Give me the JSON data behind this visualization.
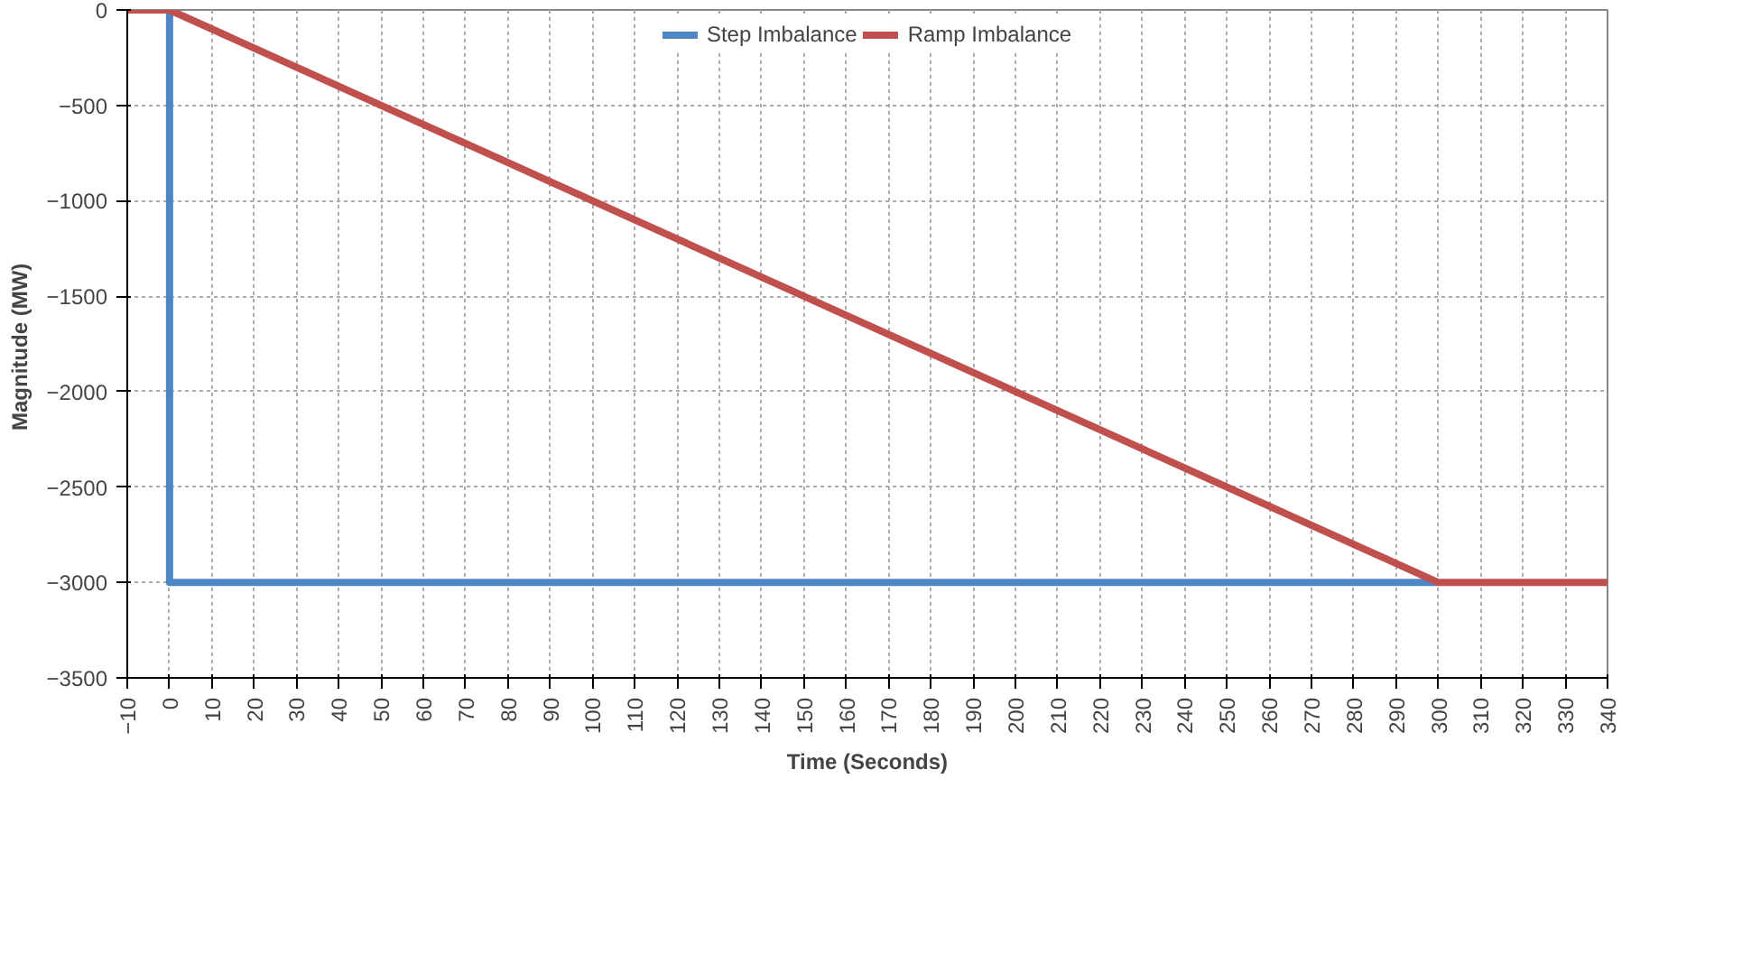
{
  "chart_data": {
    "type": "line",
    "xlabel": "Time (Seconds)",
    "ylabel": "Magnitude  (MW)",
    "xlim": [
      -10,
      340
    ],
    "xticks": [
      -10,
      0,
      10,
      20,
      30,
      40,
      50,
      60,
      70,
      80,
      90,
      100,
      110,
      120,
      130,
      140,
      150,
      160,
      170,
      180,
      190,
      200,
      210,
      220,
      230,
      240,
      250,
      260,
      270,
      280,
      290,
      300,
      310,
      320,
      330,
      340
    ],
    "ylim": [
      -3500,
      0
    ],
    "yticks": [
      -3500,
      -3000,
      -2500,
      -2000,
      -1500,
      -1000,
      -500,
      0
    ],
    "series": [
      {
        "name": "Step Imbalance",
        "color": "#4f86c6",
        "x": [
          0,
          0,
          300
        ],
        "values": [
          0,
          -3000,
          -3000
        ]
      },
      {
        "name": "Ramp Imbalance",
        "color": "#c0504d",
        "x": [
          -10,
          0,
          300,
          340
        ],
        "values": [
          0,
          0,
          -3000,
          -3000
        ]
      }
    ],
    "grid": true,
    "legend": "top",
    "line_style": "solid"
  }
}
